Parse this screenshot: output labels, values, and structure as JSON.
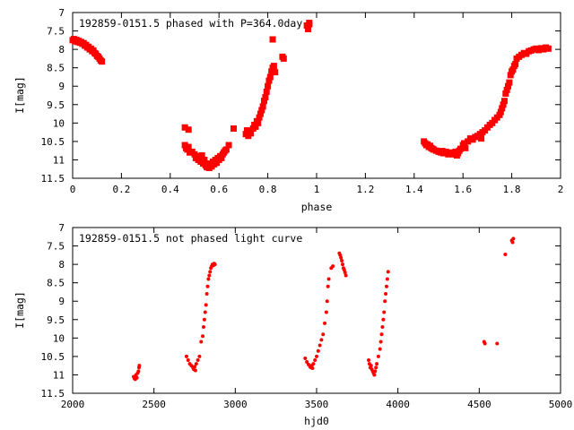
{
  "chart_data": [
    {
      "type": "scatter",
      "title": "192859-0151.5 phased with P=364.0day",
      "xlabel": "phase",
      "ylabel": "I[mag]",
      "xlim": [
        0,
        2
      ],
      "ylim": [
        11.5,
        7
      ],
      "y_inverted": true,
      "x_ticks": [
        0,
        0.2,
        0.4,
        0.6,
        0.8,
        1,
        1.2,
        1.4,
        1.6,
        1.8,
        2
      ],
      "x_tick_labels": [
        "0",
        "0.2",
        "0.4",
        "0.6",
        "0.8",
        "1",
        "1.2",
        "1.4",
        "1.6",
        "1.8",
        "2"
      ],
      "y_ticks": [
        7,
        7.5,
        8,
        8.5,
        9,
        9.5,
        10,
        10.5,
        11,
        11.5
      ],
      "y_tick_labels": [
        "7",
        "7.5",
        "8",
        "8.5",
        "9",
        "9.5",
        "10",
        "10.5",
        "11",
        "11.5"
      ],
      "grid": false,
      "marker_color": "#ff0000",
      "series": [
        {
          "points": [
            [
              0.0,
              7.75
            ],
            [
              0.005,
              7.72
            ],
            [
              0.01,
              7.78
            ],
            [
              0.015,
              7.74
            ],
            [
              0.02,
              7.8
            ],
            [
              0.025,
              7.77
            ],
            [
              0.03,
              7.82
            ],
            [
              0.035,
              7.8
            ],
            [
              0.04,
              7.85
            ],
            [
              0.045,
              7.83
            ],
            [
              0.05,
              7.9
            ],
            [
              0.055,
              7.88
            ],
            [
              0.06,
              7.95
            ],
            [
              0.065,
              7.93
            ],
            [
              0.07,
              8.0
            ],
            [
              0.075,
              7.98
            ],
            [
              0.08,
              8.05
            ],
            [
              0.085,
              8.03
            ],
            [
              0.09,
              8.1
            ],
            [
              0.095,
              8.12
            ],
            [
              0.1,
              8.18
            ],
            [
              0.105,
              8.2
            ],
            [
              0.11,
              8.25
            ],
            [
              0.115,
              8.3
            ],
            [
              0.12,
              8.33
            ],
            [
              0.46,
              10.12
            ],
            [
              0.475,
              10.18
            ],
            [
              0.46,
              10.6
            ],
            [
              0.465,
              10.68
            ],
            [
              0.47,
              10.72
            ],
            [
              0.475,
              10.65
            ],
            [
              0.48,
              10.8
            ],
            [
              0.49,
              10.78
            ],
            [
              0.5,
              10.85
            ],
            [
              0.505,
              10.95
            ],
            [
              0.51,
              10.9
            ],
            [
              0.515,
              11.0
            ],
            [
              0.52,
              10.92
            ],
            [
              0.525,
              11.05
            ],
            [
              0.53,
              10.88
            ],
            [
              0.535,
              11.1
            ],
            [
              0.54,
              11.0
            ],
            [
              0.545,
              11.15
            ],
            [
              0.55,
              11.2
            ],
            [
              0.555,
              11.1
            ],
            [
              0.56,
              11.22
            ],
            [
              0.565,
              11.15
            ],
            [
              0.57,
              11.18
            ],
            [
              0.575,
              11.05
            ],
            [
              0.58,
              11.12
            ],
            [
              0.585,
              11.0
            ],
            [
              0.59,
              11.08
            ],
            [
              0.595,
              10.95
            ],
            [
              0.6,
              11.0
            ],
            [
              0.605,
              10.9
            ],
            [
              0.61,
              10.95
            ],
            [
              0.615,
              10.85
            ],
            [
              0.62,
              10.8
            ],
            [
              0.625,
              10.75
            ],
            [
              0.63,
              10.72
            ],
            [
              0.64,
              10.6
            ],
            [
              0.66,
              10.15
            ],
            [
              0.71,
              10.3
            ],
            [
              0.715,
              10.2
            ],
            [
              0.72,
              10.35
            ],
            [
              0.725,
              10.25
            ],
            [
              0.73,
              10.28
            ],
            [
              0.74,
              10.15
            ],
            [
              0.745,
              10.05
            ],
            [
              0.75,
              10.1
            ],
            [
              0.755,
              9.95
            ],
            [
              0.76,
              10.0
            ],
            [
              0.765,
              9.85
            ],
            [
              0.77,
              9.75
            ],
            [
              0.775,
              9.65
            ],
            [
              0.78,
              9.55
            ],
            [
              0.785,
              9.4
            ],
            [
              0.79,
              9.3
            ],
            [
              0.795,
              9.15
            ],
            [
              0.8,
              9.0
            ],
            [
              0.805,
              8.85
            ],
            [
              0.81,
              8.75
            ],
            [
              0.815,
              8.6
            ],
            [
              0.82,
              8.5
            ],
            [
              0.825,
              8.45
            ],
            [
              0.83,
              8.62
            ],
            [
              0.86,
              8.2
            ],
            [
              0.865,
              8.25
            ],
            [
              0.82,
              7.73
            ],
            [
              0.96,
              7.35
            ],
            [
              0.965,
              7.4
            ],
            [
              0.97,
              7.32
            ],
            [
              0.965,
              7.45
            ],
            [
              0.97,
              7.28
            ],
            [
              1.44,
              10.5
            ],
            [
              1.445,
              10.55
            ],
            [
              1.45,
              10.6
            ],
            [
              1.455,
              10.58
            ],
            [
              1.46,
              10.65
            ],
            [
              1.465,
              10.62
            ],
            [
              1.47,
              10.68
            ],
            [
              1.475,
              10.7
            ],
            [
              1.48,
              10.72
            ],
            [
              1.49,
              10.75
            ],
            [
              1.5,
              10.78
            ],
            [
              1.51,
              10.8
            ],
            [
              1.515,
              10.76
            ],
            [
              1.52,
              10.82
            ],
            [
              1.53,
              10.78
            ],
            [
              1.54,
              10.85
            ],
            [
              1.55,
              10.8
            ],
            [
              1.56,
              10.85
            ],
            [
              1.57,
              10.78
            ],
            [
              1.575,
              10.88
            ],
            [
              1.58,
              10.82
            ],
            [
              1.585,
              10.75
            ],
            [
              1.59,
              10.7
            ],
            [
              1.6,
              10.6
            ],
            [
              1.605,
              10.55
            ],
            [
              1.61,
              10.68
            ],
            [
              1.62,
              10.5
            ],
            [
              1.63,
              10.42
            ],
            [
              1.64,
              10.45
            ],
            [
              1.65,
              10.38
            ],
            [
              1.66,
              10.35
            ],
            [
              1.67,
              10.3
            ],
            [
              1.675,
              10.42
            ],
            [
              1.68,
              10.25
            ],
            [
              1.69,
              10.2
            ],
            [
              1.7,
              10.12
            ],
            [
              1.71,
              10.05
            ],
            [
              1.72,
              10.0
            ],
            [
              1.73,
              9.92
            ],
            [
              1.74,
              9.85
            ],
            [
              1.75,
              9.78
            ],
            [
              1.755,
              9.7
            ],
            [
              1.76,
              9.6
            ],
            [
              1.765,
              9.5
            ],
            [
              1.77,
              9.4
            ],
            [
              1.775,
              9.2
            ],
            [
              1.78,
              9.1
            ],
            [
              1.785,
              9.0
            ],
            [
              1.79,
              8.9
            ],
            [
              1.795,
              8.7
            ],
            [
              1.8,
              8.6
            ],
            [
              1.805,
              8.55
            ],
            [
              1.81,
              8.45
            ],
            [
              1.815,
              8.4
            ],
            [
              1.82,
              8.25
            ],
            [
              1.83,
              8.2
            ],
            [
              1.84,
              8.15
            ],
            [
              1.85,
              8.1
            ],
            [
              1.86,
              8.12
            ],
            [
              1.87,
              8.05
            ],
            [
              1.88,
              8.03
            ],
            [
              1.89,
              8.0
            ],
            [
              1.9,
              7.98
            ],
            [
              1.91,
              8.02
            ],
            [
              1.92,
              7.97
            ],
            [
              1.93,
              8.0
            ],
            [
              1.94,
              7.95
            ],
            [
              1.95,
              7.98
            ]
          ]
        }
      ]
    },
    {
      "type": "scatter",
      "title": "192859-0151.5 not phased light curve",
      "xlabel": "hjd0",
      "ylabel": "I[mag]",
      "xlim": [
        2000,
        5000
      ],
      "ylim": [
        11.5,
        7
      ],
      "y_inverted": true,
      "x_ticks": [
        2000,
        2500,
        3000,
        3500,
        4000,
        4500,
        5000
      ],
      "x_tick_labels": [
        "2000",
        "2500",
        "3000",
        "3500",
        "4000",
        "4500",
        "5000"
      ],
      "y_ticks": [
        7,
        7.5,
        8,
        8.5,
        9,
        9.5,
        10,
        10.5,
        11,
        11.5
      ],
      "y_tick_labels": [
        "7",
        "7.5",
        "8",
        "8.5",
        "9",
        "9.5",
        "10",
        "10.5",
        "11",
        "11.5"
      ],
      "grid": false,
      "marker_color": "#ff0000",
      "series": [
        {
          "points": [
            [
              2375,
              11.05
            ],
            [
              2380,
              11.1
            ],
            [
              2385,
              11.12
            ],
            [
              2390,
              11.0
            ],
            [
              2395,
              11.08
            ],
            [
              2400,
              10.95
            ],
            [
              2405,
              10.9
            ],
            [
              2408,
              10.8
            ],
            [
              2410,
              10.75
            ],
            [
              2700,
              10.5
            ],
            [
              2710,
              10.6
            ],
            [
              2720,
              10.7
            ],
            [
              2730,
              10.75
            ],
            [
              2740,
              10.8
            ],
            [
              2745,
              10.85
            ],
            [
              2750,
              10.78
            ],
            [
              2755,
              10.88
            ],
            [
              2760,
              10.7
            ],
            [
              2770,
              10.6
            ],
            [
              2780,
              10.5
            ],
            [
              2790,
              10.1
            ],
            [
              2800,
              9.95
            ],
            [
              2805,
              9.7
            ],
            [
              2810,
              9.5
            ],
            [
              2815,
              9.3
            ],
            [
              2820,
              9.1
            ],
            [
              2825,
              8.8
            ],
            [
              2830,
              8.6
            ],
            [
              2835,
              8.4
            ],
            [
              2840,
              8.3
            ],
            [
              2845,
              8.2
            ],
            [
              2850,
              8.1
            ],
            [
              2855,
              8.05
            ],
            [
              2860,
              8.0
            ],
            [
              2865,
              8.03
            ],
            [
              2870,
              7.98
            ],
            [
              2875,
              8.0
            ],
            [
              3430,
              10.55
            ],
            [
              3440,
              10.65
            ],
            [
              3450,
              10.72
            ],
            [
              3460,
              10.78
            ],
            [
              3465,
              10.8
            ],
            [
              3470,
              10.75
            ],
            [
              3475,
              10.82
            ],
            [
              3480,
              10.7
            ],
            [
              3490,
              10.6
            ],
            [
              3500,
              10.5
            ],
            [
              3510,
              10.35
            ],
            [
              3520,
              10.2
            ],
            [
              3530,
              10.05
            ],
            [
              3540,
              9.9
            ],
            [
              3550,
              9.6
            ],
            [
              3560,
              9.3
            ],
            [
              3565,
              9.0
            ],
            [
              3570,
              8.6
            ],
            [
              3575,
              8.4
            ],
            [
              3590,
              8.1
            ],
            [
              3600,
              8.05
            ],
            [
              3640,
              7.7
            ],
            [
              3645,
              7.75
            ],
            [
              3650,
              7.82
            ],
            [
              3655,
              7.9
            ],
            [
              3660,
              8.0
            ],
            [
              3665,
              8.1
            ],
            [
              3670,
              8.15
            ],
            [
              3675,
              8.22
            ],
            [
              3680,
              8.3
            ],
            [
              3820,
              10.6
            ],
            [
              3825,
              10.7
            ],
            [
              3830,
              10.8
            ],
            [
              3835,
              10.75
            ],
            [
              3840,
              10.85
            ],
            [
              3845,
              10.9
            ],
            [
              3850,
              10.95
            ],
            [
              3855,
              11.0
            ],
            [
              3860,
              10.9
            ],
            [
              3865,
              10.8
            ],
            [
              3870,
              10.7
            ],
            [
              3880,
              10.5
            ],
            [
              3890,
              10.3
            ],
            [
              3895,
              10.1
            ],
            [
              3900,
              9.9
            ],
            [
              3905,
              9.7
            ],
            [
              3910,
              9.5
            ],
            [
              3915,
              9.3
            ],
            [
              3920,
              9.0
            ],
            [
              3925,
              8.8
            ],
            [
              3930,
              8.6
            ],
            [
              3935,
              8.4
            ],
            [
              3940,
              8.2
            ],
            [
              4530,
              10.1
            ],
            [
              4535,
              10.15
            ],
            [
              4610,
              10.15
            ],
            [
              4660,
              7.73
            ],
            [
              4700,
              7.35
            ],
            [
              4705,
              7.4
            ],
            [
              4710,
              7.3
            ]
          ]
        }
      ]
    }
  ]
}
